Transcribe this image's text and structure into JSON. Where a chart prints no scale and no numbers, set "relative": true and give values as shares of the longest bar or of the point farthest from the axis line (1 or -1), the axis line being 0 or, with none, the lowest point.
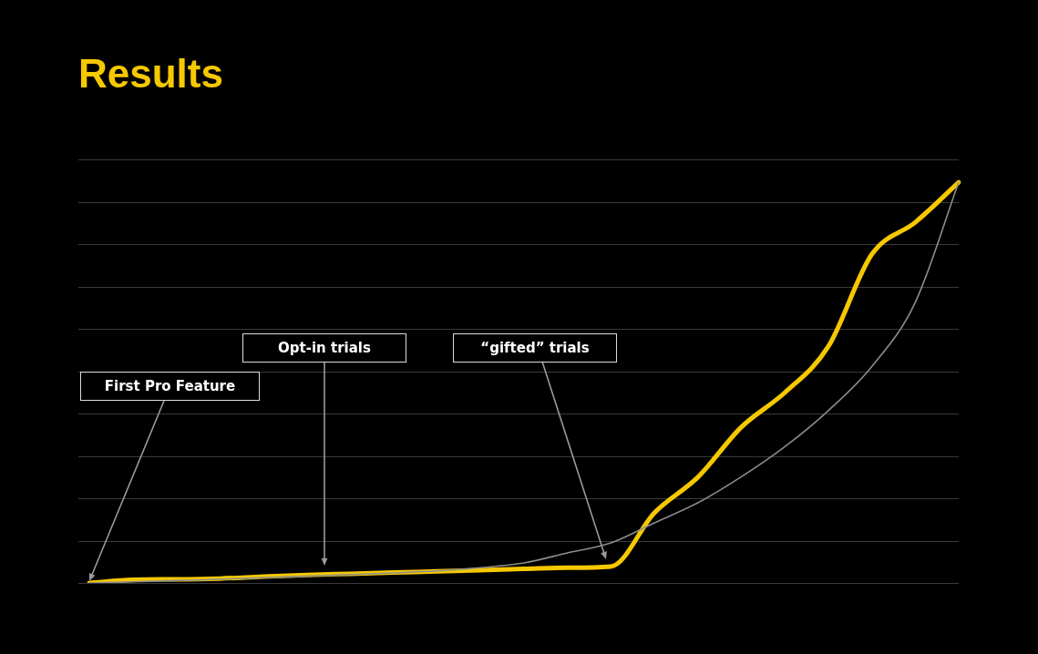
{
  "chart_data": {
    "type": "line",
    "title": "Results",
    "relative": true,
    "grid": true,
    "legend": false,
    "marker": "none",
    "line_style": "solid",
    "categories": [
      null,
      null,
      null,
      null,
      null,
      null,
      null,
      null,
      null,
      null,
      null,
      null,
      null,
      null,
      null,
      null,
      null,
      null,
      null,
      null,
      null
    ],
    "series": [
      {
        "color": "#8c8c8c",
        "values": [
          0,
          0.003,
          0.006,
          0.009,
          0.013,
          0.017,
          0.021,
          0.025,
          0.03,
          0.038,
          0.05,
          0.075,
          0.1,
          0.15,
          0.2,
          0.265,
          0.34,
          0.43,
          0.54,
          0.7,
          1
        ]
      },
      {
        "color": "#f5c800",
        "values": [
          0,
          0.008,
          0.009,
          0.011,
          0.016,
          0.02,
          0.023,
          0.026,
          0.029,
          0.032,
          0.035,
          0.038,
          0.041,
          0.175,
          0.264,
          0.389,
          0.475,
          0.59,
          0.82,
          0.9,
          1
        ]
      }
    ],
    "annotations": [
      "First Pro Feature",
      "Opt-in trials",
      "“gifted” trials"
    ]
  }
}
